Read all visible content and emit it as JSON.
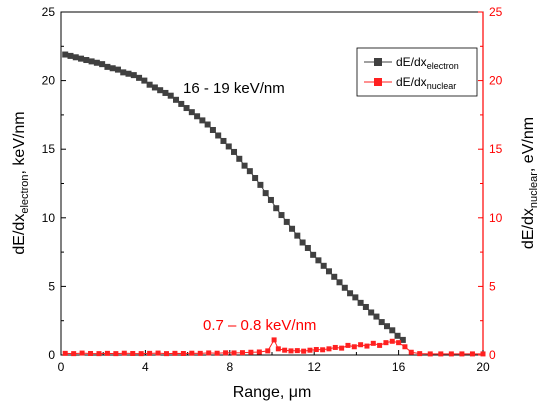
{
  "chart_data": {
    "type": "scatter",
    "x_axis": {
      "label_main": "Range, ",
      "label_unit": "μm",
      "range": [
        0,
        20
      ],
      "ticks": [
        "0",
        "4",
        "8",
        "12",
        "16",
        "20"
      ]
    },
    "y_left_axis": {
      "label_main": "dE/dx",
      "label_sub": "electron",
      "label_unit": ", keV/nm",
      "range": [
        0,
        25
      ],
      "ticks": [
        "0",
        "5",
        "10",
        "15",
        "20",
        "25"
      ],
      "color": "#000000"
    },
    "y_right_axis": {
      "label_main": "dE/dx",
      "label_sub": "nuclear",
      "label_unit": ", eV/nm",
      "range": [
        0,
        25
      ],
      "ticks": [
        "0",
        "5",
        "10",
        "15",
        "20",
        "25"
      ],
      "color": "#ff0000"
    },
    "legend": {
      "placement": "top-right",
      "entries": [
        {
          "main": "dE/dx",
          "sub": "electron",
          "color": "#404040"
        },
        {
          "main": "dE/dx",
          "sub": "nuclear",
          "color": "#ff2020"
        }
      ]
    },
    "annotations": {
      "electron_note": "16 - 19 keV/nm",
      "nuclear_note": "0.7 – 0.8 keV/nm"
    },
    "series": [
      {
        "key": "electron",
        "color": "#404040",
        "x": [
          0.2,
          0.45,
          0.7,
          0.95,
          1.2,
          1.45,
          1.7,
          1.95,
          2.2,
          2.45,
          2.7,
          2.95,
          3.2,
          3.45,
          3.7,
          3.95,
          4.2,
          4.45,
          4.7,
          4.95,
          5.2,
          5.45,
          5.7,
          5.95,
          6.2,
          6.45,
          6.7,
          6.95,
          7.2,
          7.45,
          7.7,
          7.95,
          8.2,
          8.45,
          8.7,
          8.95,
          9.2,
          9.45,
          9.7,
          9.95,
          10.2,
          10.45,
          10.7,
          10.95,
          11.2,
          11.45,
          11.7,
          11.95,
          12.2,
          12.45,
          12.7,
          12.95,
          13.2,
          13.45,
          13.7,
          13.95,
          14.2,
          14.45,
          14.7,
          14.95,
          15.2,
          15.45,
          15.7,
          15.95,
          16.2
        ],
        "y": [
          21.9,
          21.8,
          21.7,
          21.6,
          21.5,
          21.4,
          21.3,
          21.2,
          21.0,
          20.9,
          20.8,
          20.6,
          20.5,
          20.4,
          20.2,
          20.0,
          19.7,
          19.5,
          19.3,
          19.1,
          18.9,
          18.6,
          18.3,
          18.0,
          17.7,
          17.4,
          17.1,
          16.8,
          16.4,
          16.0,
          15.6,
          15.2,
          14.8,
          14.3,
          13.8,
          13.4,
          12.9,
          12.4,
          11.8,
          11.3,
          10.7,
          10.2,
          9.7,
          9.2,
          8.7,
          8.2,
          7.8,
          7.3,
          6.9,
          6.5,
          6.1,
          5.7,
          5.3,
          4.9,
          4.5,
          4.2,
          3.8,
          3.5,
          3.1,
          2.8,
          2.4,
          2.1,
          1.8,
          1.4,
          1.1
        ]
      },
      {
        "key": "nuclear",
        "color": "#ff2020",
        "x": [
          0.2,
          0.6,
          1.0,
          1.4,
          1.8,
          2.2,
          2.6,
          3.0,
          3.4,
          3.8,
          4.2,
          4.6,
          5.0,
          5.4,
          5.8,
          6.2,
          6.6,
          7.0,
          7.4,
          7.8,
          8.2,
          8.6,
          9.0,
          9.4,
          9.8,
          10.1,
          10.3,
          10.6,
          10.9,
          11.2,
          11.5,
          11.8,
          12.1,
          12.4,
          12.7,
          13.0,
          13.3,
          13.6,
          13.9,
          14.2,
          14.5,
          14.8,
          15.1,
          15.4,
          15.7,
          16.0,
          16.3,
          16.6,
          17.0,
          17.5,
          18.0,
          18.5,
          19.0,
          19.5,
          20.0
        ],
        "y": [
          0.12,
          0.1,
          0.14,
          0.11,
          0.1,
          0.12,
          0.1,
          0.13,
          0.11,
          0.1,
          0.12,
          0.14,
          0.1,
          0.12,
          0.11,
          0.13,
          0.12,
          0.15,
          0.13,
          0.16,
          0.15,
          0.17,
          0.2,
          0.22,
          0.3,
          1.1,
          0.45,
          0.35,
          0.3,
          0.32,
          0.28,
          0.35,
          0.4,
          0.38,
          0.45,
          0.55,
          0.5,
          0.7,
          0.6,
          0.75,
          0.65,
          0.85,
          0.7,
          0.9,
          1.0,
          0.9,
          0.6,
          0.2,
          0.1,
          0.08,
          0.08,
          0.08,
          0.08,
          0.08,
          0.08
        ]
      }
    ]
  }
}
